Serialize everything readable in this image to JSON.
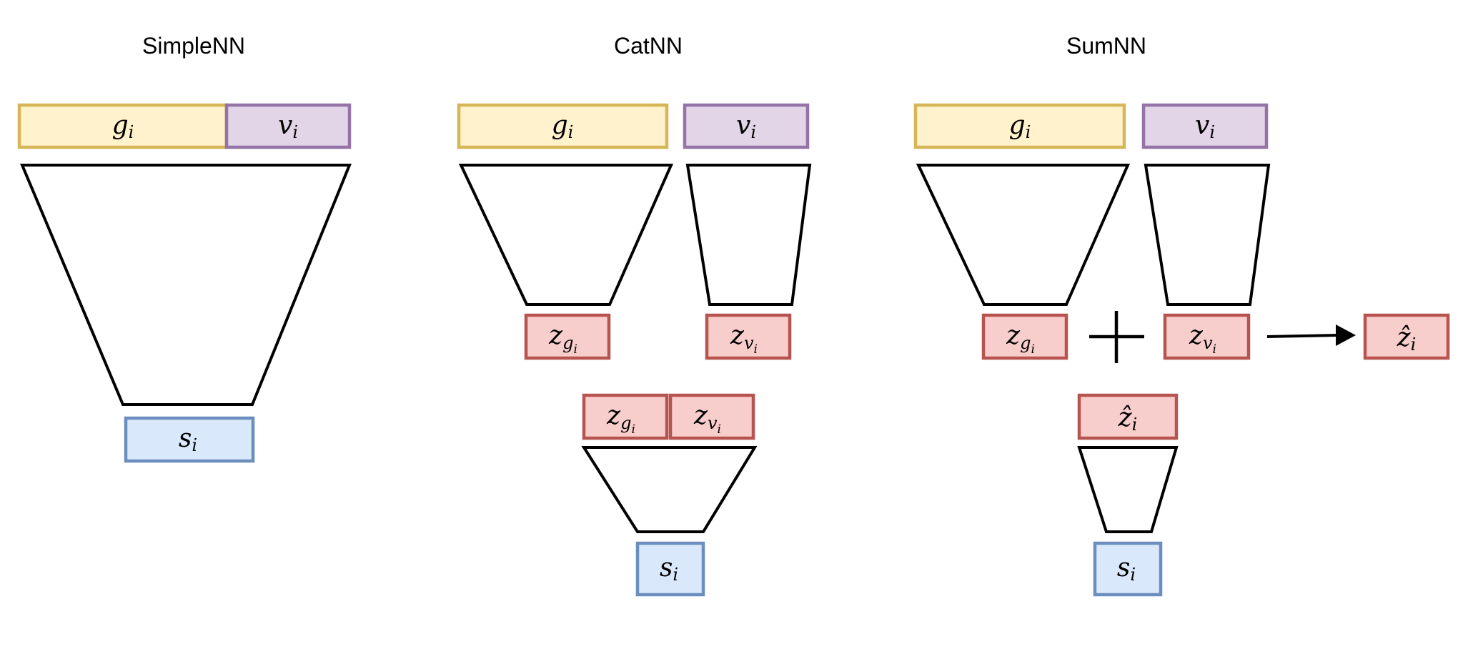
{
  "titles": {
    "simple": "SimpleNN",
    "cat": "CatNN",
    "sum": "SumNN"
  },
  "labels": {
    "g": "g",
    "v": "v",
    "z": "z",
    "s": "s",
    "zhat": "ẑ",
    "sub_i": "i",
    "sub_g": "g",
    "sub_v": "v"
  },
  "colors": {
    "g_fill": "#fff2cc",
    "g_stroke": "#d6b656",
    "v_fill": "#e1d5e7",
    "v_stroke": "#9673a6",
    "z_fill": "#f8cecc",
    "z_stroke": "#b85450",
    "s_fill": "#dae8fc",
    "s_stroke": "#6c8ebf",
    "line": "#000000"
  },
  "symbols": {
    "plus": "plus-icon",
    "arrow": "arrow-right-icon"
  }
}
